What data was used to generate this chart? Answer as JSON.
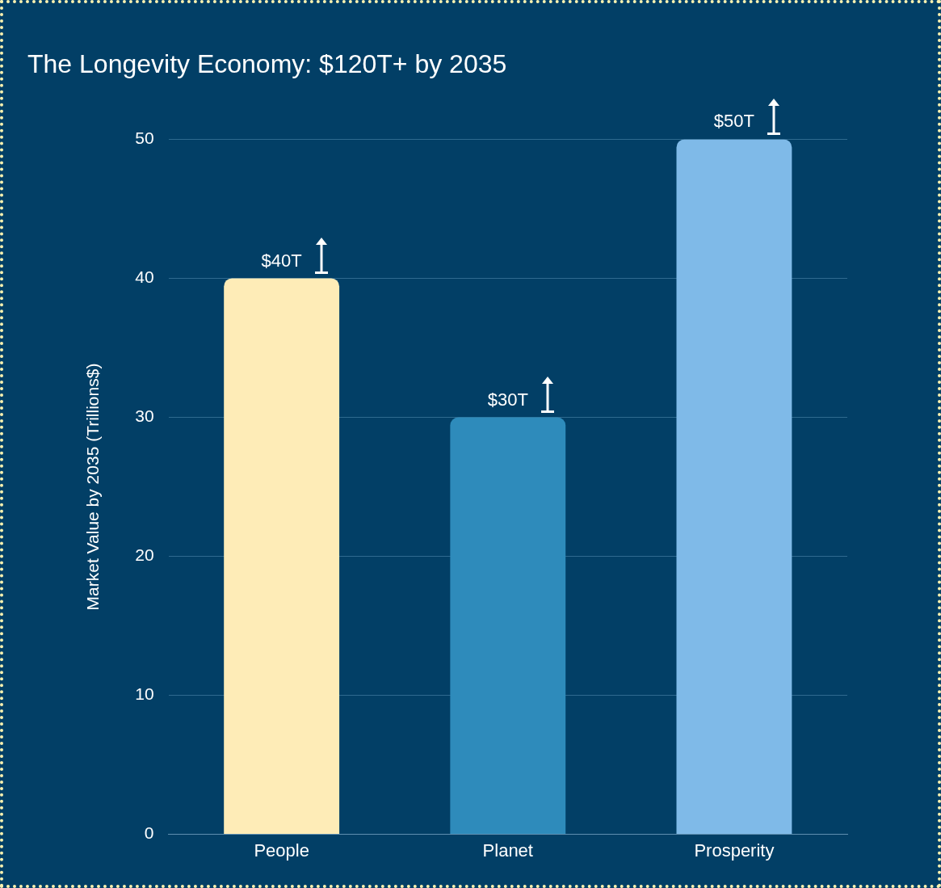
{
  "chart_data": {
    "type": "bar",
    "title": "The Longevity Economy: $120T+ by 2035",
    "ylabel": "Market Value by 2035 (Trillions$)",
    "categories": [
      "People",
      "Planet",
      "Prosperity"
    ],
    "values": [
      40,
      30,
      50
    ],
    "colors": [
      "#feecb7",
      "#2e8bbb",
      "#7fbae8"
    ],
    "value_labels": [
      "$40T",
      "$30T",
      "$50T"
    ],
    "ylim": [
      0,
      50
    ],
    "yticks": [
      0,
      10,
      20,
      30,
      40,
      50
    ],
    "grid": "y"
  }
}
